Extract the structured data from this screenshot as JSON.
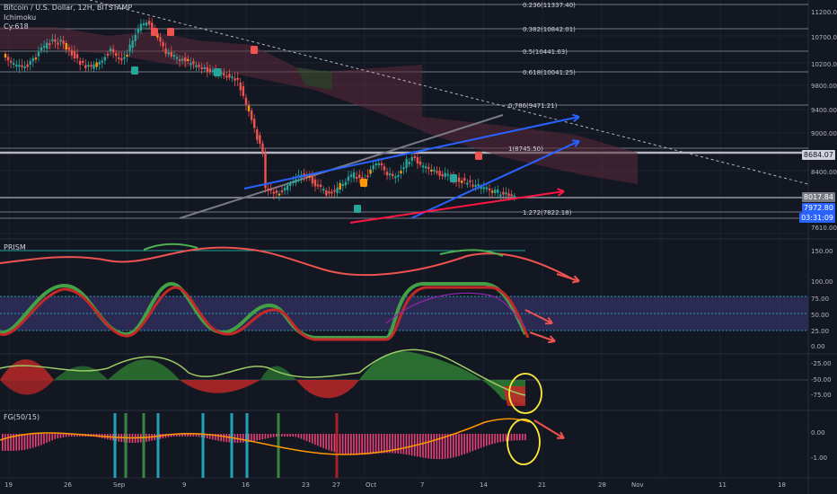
{
  "header": {
    "symbol": "Bitcoin / U.S. Dollar, 12H, BITSTAMP",
    "indicator1": "Ichimoku",
    "indicator2": "Cy:618"
  },
  "price_axis": {
    "labels": [
      "11200.00",
      "10700.00",
      "10200.00",
      "9800.00",
      "9400.00",
      "9000.00",
      "8400.00",
      "8000.00",
      "7610.00"
    ],
    "current_price": "8684.07",
    "tag_mid": "8017.84",
    "tag_last": "7972.80",
    "tag_timer": "03:31:09"
  },
  "fib_levels": [
    {
      "label": "0.236(11337.40)"
    },
    {
      "label": "0.382(10842.01)"
    },
    {
      "label": "0.5(10441.63)"
    },
    {
      "label": "0.618(10041.25)"
    },
    {
      "label": "0.786(9471.21)"
    },
    {
      "label": "1(8745.50)"
    },
    {
      "label": "1.272(7822.18)"
    }
  ],
  "prism": {
    "title": "PRISM",
    "axis": [
      "150.00",
      "100.00",
      "75.00",
      "50.00",
      "25.00",
      "0.00"
    ]
  },
  "osc2": {
    "axis": [
      "-25.00",
      "-50.00",
      "-75.00"
    ]
  },
  "fg": {
    "title": "FG(50/15)",
    "axis": [
      "0.00",
      "-1.00"
    ]
  },
  "x_axis": [
    "19",
    "26",
    "Sep",
    "9",
    "16",
    "23",
    "27",
    "Oct",
    "7",
    "14",
    "21",
    "28",
    "Nov",
    "11",
    "18"
  ],
  "colors": {
    "bg": "#131722",
    "up": "#26a69a",
    "down": "#ef5350",
    "blue_arrow": "#2962ff",
    "red_arrow": "#ff1744",
    "yellow_circle": "#ffeb3b",
    "cloud": "#5d2a3a"
  }
}
